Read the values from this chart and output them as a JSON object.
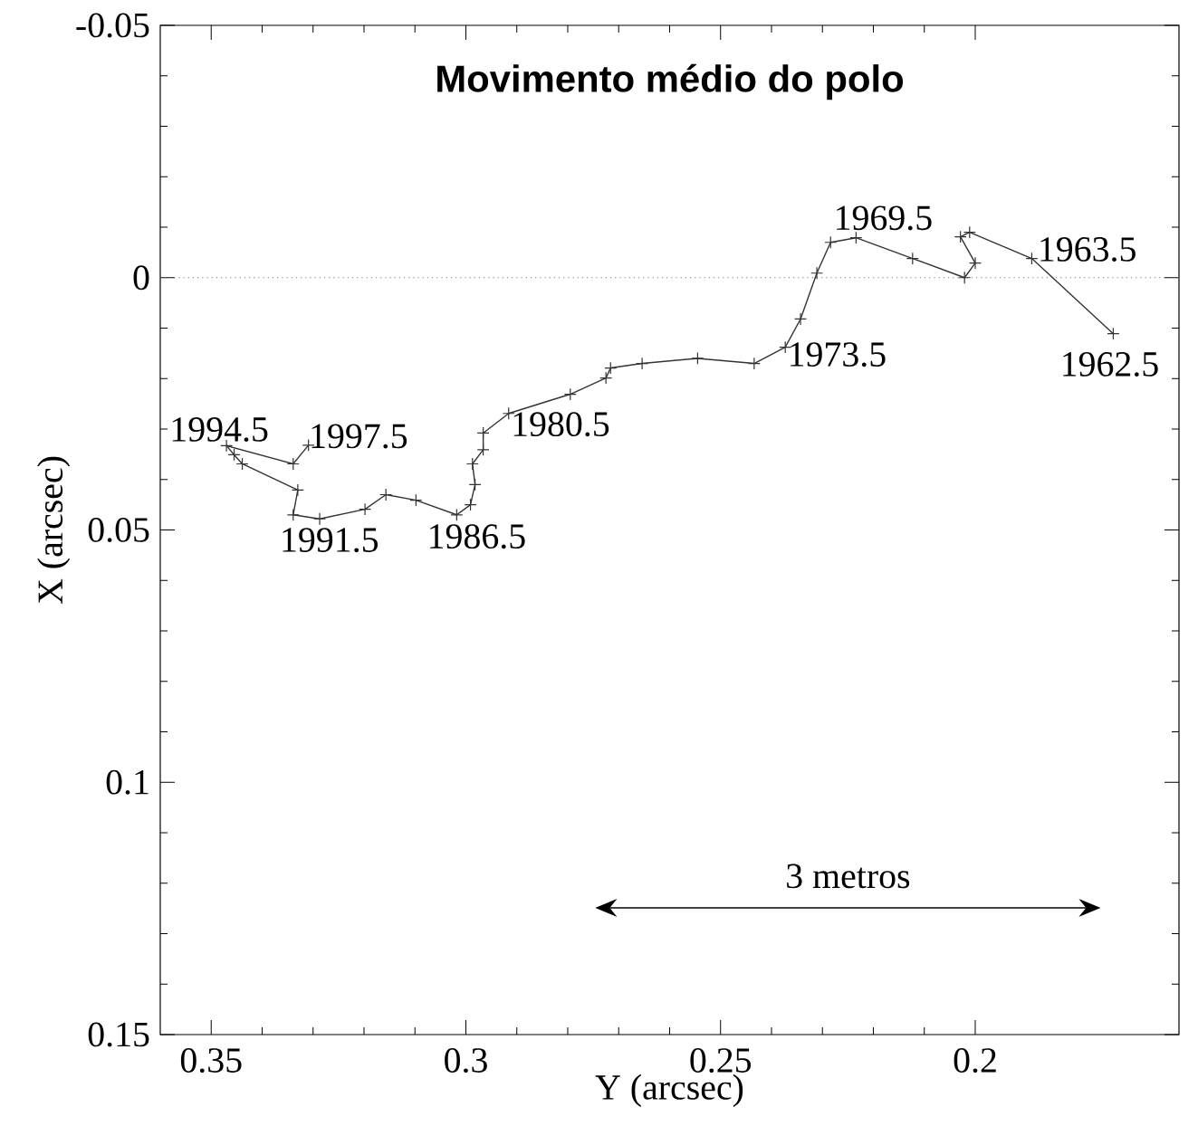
{
  "chart_data": {
    "type": "line",
    "title": "Movimento médio do polo",
    "xlabel": "Y (arcsec)",
    "ylabel": "X (arcsec)",
    "x": [
      0.1729,
      0.1889,
      0.2011,
      0.2029,
      0.2,
      0.2021,
      0.2123,
      0.2234,
      0.2284,
      0.2311,
      0.2343,
      0.2373,
      0.2434,
      0.2545,
      0.2654,
      0.2716,
      0.2725,
      0.2795,
      0.2916,
      0.2966,
      0.2966,
      0.2987,
      0.2982,
      0.2991,
      0.3018,
      0.3098,
      0.3157,
      0.3198,
      0.3287,
      0.3339,
      0.333,
      0.3439,
      0.3455,
      0.347,
      0.3339,
      0.3309
    ],
    "values": [
      0.0111,
      -0.0038,
      -0.009,
      -0.0081,
      -0.0029,
      0.0,
      -0.0038,
      -0.0079,
      -0.007,
      -0.0009,
      0.0082,
      0.0138,
      0.017,
      0.016,
      0.017,
      0.0179,
      0.0199,
      0.0231,
      0.0269,
      0.0308,
      0.0341,
      0.0369,
      0.041,
      0.045,
      0.047,
      0.0441,
      0.043,
      0.0459,
      0.0478,
      0.047,
      0.0421,
      0.0369,
      0.0351,
      0.0333,
      0.0369,
      0.0332
    ],
    "color": "#333333",
    "marker": "cross",
    "line_style": "solid",
    "xlim": [
      0.36,
      0.16
    ],
    "xticks": [
      0.35,
      0.3,
      0.25,
      0.2
    ],
    "ylim": [
      0.15,
      -0.05
    ],
    "yticks": [
      -0.05,
      0,
      0.05,
      0.1,
      0.15
    ],
    "ref_lines": [
      {
        "axis": "y",
        "value": 0,
        "line_style": "dotted",
        "color": "#777777"
      }
    ],
    "annotations": [
      {
        "text": "1962.5",
        "x": 0.1729,
        "y": 0.0111
      },
      {
        "text": "1963.5",
        "x": 0.1889,
        "y": -0.0038
      },
      {
        "text": "1969.5",
        "x": 0.2234,
        "y": -0.0079
      },
      {
        "text": "1973.5",
        "x": 0.2373,
        "y": 0.0138
      },
      {
        "text": "1980.5",
        "x": 0.2916,
        "y": 0.0269
      },
      {
        "text": "1986.5",
        "x": 0.3018,
        "y": 0.047
      },
      {
        "text": "1991.5",
        "x": 0.3339,
        "y": 0.047
      },
      {
        "text": "1994.5",
        "x": 0.347,
        "y": 0.0333
      },
      {
        "text": "1997.5",
        "x": 0.3309,
        "y": 0.0332
      },
      "3 metros"
    ]
  }
}
